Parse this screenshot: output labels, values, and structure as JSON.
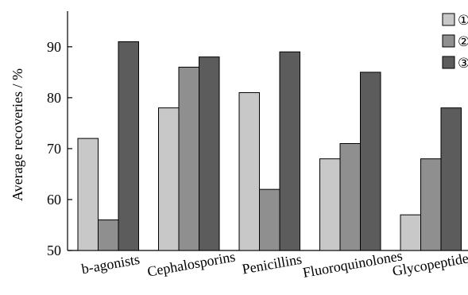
{
  "chart_data": {
    "type": "bar",
    "title": "",
    "xlabel": "",
    "ylabel": "Average recoveries / %",
    "ylim": [
      50,
      97
    ],
    "yticks": [
      50,
      60,
      70,
      80,
      90
    ],
    "grid": false,
    "legend_position": "top-right",
    "categories": [
      "b-agonists",
      "Cephalosporins",
      "Penicillins",
      "Fluoroquinolones",
      "Glycopeptides"
    ],
    "series": [
      {
        "name": "①",
        "color": "#c8c8c8",
        "values": [
          72,
          78,
          81,
          68,
          57
        ]
      },
      {
        "name": "②",
        "color": "#8f8f8f",
        "values": [
          56,
          86,
          62,
          71,
          68
        ]
      },
      {
        "name": "③",
        "color": "#5c5c5c",
        "values": [
          91,
          88,
          89,
          85,
          78
        ]
      }
    ]
  }
}
